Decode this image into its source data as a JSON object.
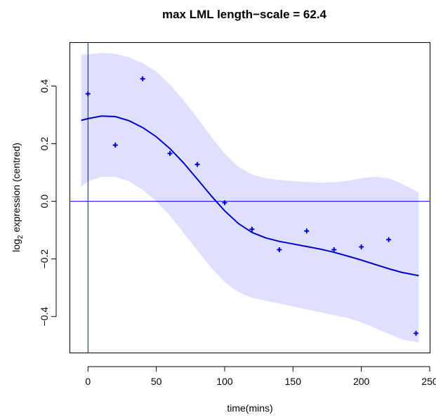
{
  "chart_data": {
    "type": "line",
    "title": "max LML length−scale = 62.4",
    "xlabel": "time(mins)",
    "ylabel": {
      "prefix": "log",
      "subscript": "2",
      "suffix": " expression (centred)"
    },
    "xlim": [
      -13,
      250
    ],
    "ylim": [
      -0.525,
      0.55
    ],
    "x_ticks": [
      0,
      50,
      100,
      150,
      200,
      250
    ],
    "y_ticks": [
      -0.4,
      -0.2,
      0.0,
      0.2,
      0.4
    ],
    "x_tick_labels": [
      "0",
      "50",
      "100",
      "150",
      "200",
      "250"
    ],
    "y_tick_labels": [
      "−0.4",
      "−0.2",
      "0.0",
      "0.2",
      "0.4"
    ],
    "reference_lines": {
      "h": 0,
      "v": 0
    },
    "points": {
      "x": [
        0,
        20,
        40,
        60,
        80,
        100,
        120,
        140,
        160,
        180,
        200,
        220,
        240
      ],
      "y": [
        0.373,
        0.195,
        0.425,
        0.166,
        0.128,
        -0.005,
        -0.097,
        -0.168,
        -0.103,
        -0.168,
        -0.158,
        -0.133,
        -0.458
      ]
    },
    "mean_curve": {
      "x": [
        -5,
        0,
        10,
        20,
        30,
        40,
        50,
        60,
        70,
        80,
        90,
        100,
        110,
        120,
        130,
        140,
        150,
        160,
        170,
        180,
        190,
        200,
        210,
        220,
        230,
        242
      ],
      "y": [
        0.281,
        0.287,
        0.296,
        0.294,
        0.28,
        0.256,
        0.224,
        0.183,
        0.133,
        0.077,
        0.02,
        -0.033,
        -0.077,
        -0.108,
        -0.127,
        -0.139,
        -0.148,
        -0.157,
        -0.166,
        -0.177,
        -0.19,
        -0.204,
        -0.219,
        -0.234,
        -0.247,
        -0.258
      ]
    },
    "band": {
      "x": [
        -5,
        0,
        10,
        20,
        30,
        40,
        50,
        60,
        70,
        80,
        90,
        100,
        110,
        120,
        130,
        140,
        150,
        160,
        170,
        180,
        190,
        200,
        210,
        220,
        230,
        242
      ],
      "upper": [
        0.51,
        0.51,
        0.515,
        0.512,
        0.5,
        0.48,
        0.45,
        0.405,
        0.35,
        0.29,
        0.225,
        0.165,
        0.12,
        0.093,
        0.08,
        0.074,
        0.07,
        0.067,
        0.065,
        0.066,
        0.071,
        0.08,
        0.085,
        0.08,
        0.06,
        0.03
      ],
      "lower": [
        0.05,
        0.07,
        0.085,
        0.085,
        0.07,
        0.04,
        0.0,
        -0.05,
        -0.11,
        -0.17,
        -0.23,
        -0.28,
        -0.315,
        -0.335,
        -0.345,
        -0.355,
        -0.365,
        -0.375,
        -0.385,
        -0.395,
        -0.405,
        -0.42,
        -0.44,
        -0.46,
        -0.48,
        -0.49
      ]
    },
    "colors": {
      "points": "#0000cc",
      "curve": "#0000cc",
      "band": "#dfe0ff",
      "reference": "#0000ff",
      "axis": "#000000"
    }
  }
}
